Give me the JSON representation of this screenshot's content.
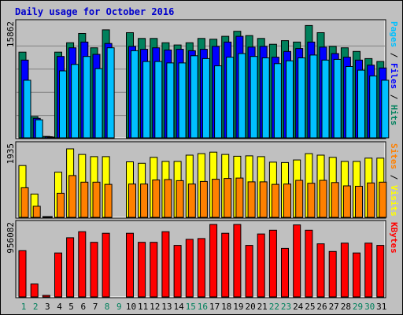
{
  "chart_data": {
    "type": "bar",
    "title": "Daily usage for October 2016",
    "categories": [
      "1",
      "2",
      "3",
      "4",
      "5",
      "6",
      "7",
      "8",
      "9",
      "10",
      "11",
      "12",
      "13",
      "14",
      "15",
      "16",
      "17",
      "18",
      "19",
      "20",
      "21",
      "22",
      "23",
      "24",
      "25",
      "26",
      "27",
      "28",
      "29",
      "30",
      "31"
    ],
    "weekend_days": [
      "1",
      "2",
      "8",
      "9",
      "15",
      "16",
      "22",
      "23",
      "29",
      "30"
    ],
    "panels": [
      {
        "id": "hits",
        "max_label": "15862",
        "ylim": [
          0,
          15862
        ],
        "side_label_parts": [
          {
            "text": "Pages",
            "color": "#00c0ff"
          },
          {
            "text": " / ",
            "color": "#000000"
          },
          {
            "text": "Files",
            "color": "#0000ff"
          },
          {
            "text": " / ",
            "color": "#000000"
          },
          {
            "text": "Hits",
            "color": "#00805c"
          }
        ],
        "series": [
          {
            "name": "Hits",
            "color": "#00805c",
            "values": [
              11900,
              2950,
              200,
              11900,
              13200,
              14500,
              12500,
              15000,
              0,
              14600,
              13800,
              13800,
              13200,
              12900,
              13200,
              13800,
              13700,
              14100,
              14800,
              14200,
              13800,
              13000,
              13500,
              13300,
              15600,
              14600,
              12700,
              12500,
              12000,
              11000,
              10600
            ]
          },
          {
            "name": "Files",
            "color": "#0000ff",
            "values": [
              10800,
              2700,
              150,
              11300,
              12500,
              13300,
              11600,
              13100,
              0,
              12700,
              12300,
              12500,
              12200,
              12300,
              12100,
              12300,
              12700,
              13300,
              14100,
              12600,
              12700,
              11200,
              12000,
              12400,
              13300,
              12600,
              11700,
              11200,
              10800,
              10100,
              9700
            ]
          },
          {
            "name": "Pages",
            "color": "#00c0ff",
            "values": [
              8000,
              2500,
              100,
              9300,
              10200,
              11300,
              9600,
              12500,
              0,
              12100,
              10600,
              10600,
              10400,
              10400,
              11400,
              11000,
              10000,
              11200,
              11700,
              11300,
              11100,
              10300,
              10700,
              11100,
              11500,
              10800,
              10900,
              9900,
              9400,
              8600,
              8000
            ]
          }
        ]
      },
      {
        "id": "visits",
        "max_label": "1935",
        "ylim": [
          0,
          1935
        ],
        "side_label_parts": [
          {
            "text": "Sites",
            "color": "#ff8000"
          },
          {
            "text": " / ",
            "color": "#000000"
          },
          {
            "text": "Visits",
            "color": "#ffff00"
          }
        ],
        "series": [
          {
            "name": "Visits",
            "color": "#ffff00",
            "values": [
              1400,
              630,
              20,
              1220,
              1850,
              1700,
              1640,
              1640,
              0,
              1500,
              1460,
              1620,
              1510,
              1510,
              1680,
              1720,
              1760,
              1700,
              1650,
              1660,
              1640,
              1490,
              1480,
              1550,
              1720,
              1680,
              1620,
              1510,
              1510,
              1600,
              1600
            ]
          },
          {
            "name": "Sites",
            "color": "#ff8000",
            "values": [
              800,
              300,
              10,
              650,
              1130,
              950,
              950,
              890,
              0,
              900,
              900,
              1010,
              1020,
              990,
              900,
              970,
              1030,
              1050,
              1060,
              960,
              960,
              890,
              900,
              1000,
              920,
              1000,
              940,
              850,
              840,
              930,
              950
            ]
          }
        ]
      },
      {
        "id": "kbytes",
        "max_label": "956082",
        "ylim": [
          0,
          956082
        ],
        "side_label_parts": [
          {
            "text": "KBytes",
            "color": "#ff0000"
          }
        ],
        "series": [
          {
            "name": "KBytes",
            "color": "#ff0000",
            "values": [
              610000,
              170000,
              20000,
              580000,
              780000,
              860000,
              720000,
              840000,
              0,
              840000,
              720000,
              720000,
              860000,
              680000,
              760000,
              770000,
              960000,
              840000,
              1000000,
              680000,
              830000,
              880000,
              640000,
              950000,
              880000,
              700000,
              600000,
              710000,
              580000,
              710000,
              680000
            ]
          }
        ]
      }
    ],
    "colors": {
      "background": "#c0c0c0",
      "title": "#0000cc",
      "weekday_label": "#000000",
      "weekend_label": "#00805c",
      "bar_outline": "#000000"
    }
  }
}
